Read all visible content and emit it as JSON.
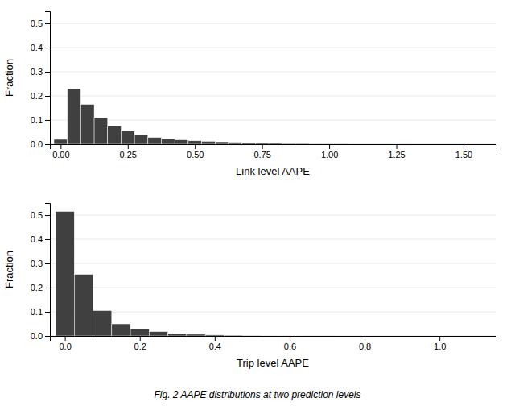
{
  "chart_data": [
    {
      "type": "histogram",
      "xlabel": "Link level AAPE",
      "ylabel": "Fraction",
      "xlim": [
        -0.04,
        1.62
      ],
      "ylim": [
        0,
        0.55
      ],
      "yticks": [
        {
          "value": 0,
          "label": "0.0"
        },
        0.1,
        0.2,
        0.3,
        0.4,
        0.5
      ],
      "xticks": [
        {
          "value": 0,
          "label": "0.00"
        },
        0.25,
        {
          "value": 0.5,
          "label": "0.50"
        },
        0.75,
        {
          "value": 1,
          "label": "1.00"
        },
        1.25,
        {
          "value": 1.5,
          "label": "1.50"
        }
      ],
      "bins": [
        -0.025,
        0.025,
        0.075,
        0.125,
        0.175,
        0.225,
        0.275,
        0.325,
        0.375,
        0.425,
        0.475,
        0.525,
        0.575,
        0.625,
        0.675,
        0.725,
        0.775,
        0.825,
        0.875,
        0.925,
        0.975,
        1.025,
        1.075,
        1.125,
        1.175,
        1.225,
        1.275,
        1.325,
        1.375,
        1.425,
        1.475,
        1.525
      ],
      "values": [
        0.02,
        0.23,
        0.165,
        0.11,
        0.075,
        0.055,
        0.04,
        0.028,
        0.022,
        0.018,
        0.014,
        0.012,
        0.01,
        0.008,
        0.006,
        0.005,
        0.004,
        0.003,
        0.003,
        0.002,
        0.002,
        0.002,
        0.001,
        0.001,
        0.001,
        0.001,
        0.001,
        0.001,
        0.001,
        0.001,
        0.001
      ],
      "color": "#404040"
    },
    {
      "type": "histogram",
      "xlabel": "Trip level AAPE",
      "ylabel": "Fraction",
      "xlim": [
        -0.04,
        1.15
      ],
      "ylim": [
        0,
        0.55
      ],
      "yticks": [
        {
          "value": 0,
          "label": "0.0"
        },
        0.1,
        0.2,
        0.3,
        0.4,
        0.5
      ],
      "xticks": [
        {
          "value": 0,
          "label": "0.0"
        },
        0.2,
        0.4,
        0.6,
        0.8,
        {
          "value": 1,
          "label": "1.0"
        }
      ],
      "bins": [
        -0.025,
        0.025,
        0.075,
        0.125,
        0.175,
        0.225,
        0.275,
        0.325,
        0.375,
        0.425,
        0.475,
        0.525,
        0.575,
        0.625,
        0.675,
        0.725
      ],
      "values": [
        0.515,
        0.255,
        0.105,
        0.05,
        0.03,
        0.018,
        0.01,
        0.007,
        0.004,
        0.003,
        0.002,
        0.001,
        0.001,
        0.001,
        0.001
      ],
      "color": "#404040",
      "annotations": [
        "Fig. 2 AAPE distributions at two prediction levels"
      ]
    }
  ]
}
